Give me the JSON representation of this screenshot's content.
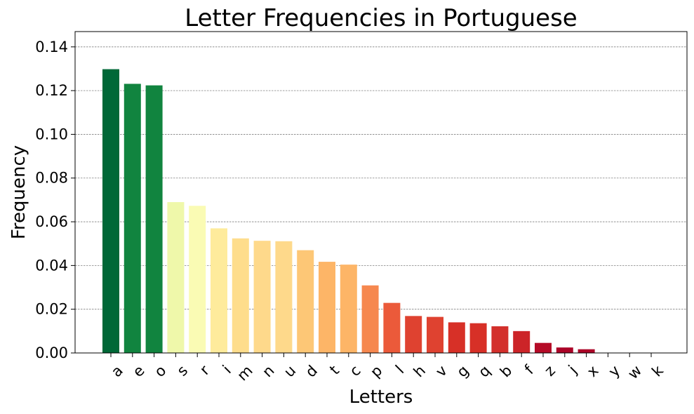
{
  "chart_data": {
    "type": "bar",
    "title": "Letter Frequencies in Portuguese",
    "xlabel": "Letters",
    "ylabel": "Frequency",
    "categories": [
      "a",
      "e",
      "o",
      "s",
      "r",
      "i",
      "m",
      "n",
      "u",
      "d",
      "t",
      "c",
      "p",
      "l",
      "h",
      "v",
      "g",
      "q",
      "b",
      "f",
      "z",
      "j",
      "x",
      "y",
      "w",
      "k"
    ],
    "values": [
      0.1298,
      0.1231,
      0.1224,
      0.069,
      0.0673,
      0.057,
      0.0524,
      0.0513,
      0.0511,
      0.047,
      0.0417,
      0.0404,
      0.0309,
      0.0229,
      0.0169,
      0.0165,
      0.014,
      0.0136,
      0.0122,
      0.01,
      0.0046,
      0.0025,
      0.0017,
      0.0,
      0.0,
      0.0
    ],
    "colors": [
      "#006837",
      "#11843f",
      "#11843f",
      "#eff8aa",
      "#fafbb4",
      "#feeb9c",
      "#fedd8c",
      "#fed98b",
      "#fed98b",
      "#fdc776",
      "#fdb567",
      "#fdb567",
      "#f6884f",
      "#eb5a3a",
      "#df4230",
      "#df4230",
      "#d73027",
      "#d73027",
      "#d3302c",
      "#cc2428",
      "#b50b27",
      "#ab0427",
      "#ab0427",
      "#a50026",
      "#a50026",
      "#a50026"
    ],
    "ylim": [
      0,
      0.147
    ],
    "yticks": [
      "0.00",
      "0.02",
      "0.04",
      "0.06",
      "0.08",
      "0.10",
      "0.12",
      "0.14"
    ],
    "grid": "horizontal-dashed",
    "legend": "none"
  }
}
